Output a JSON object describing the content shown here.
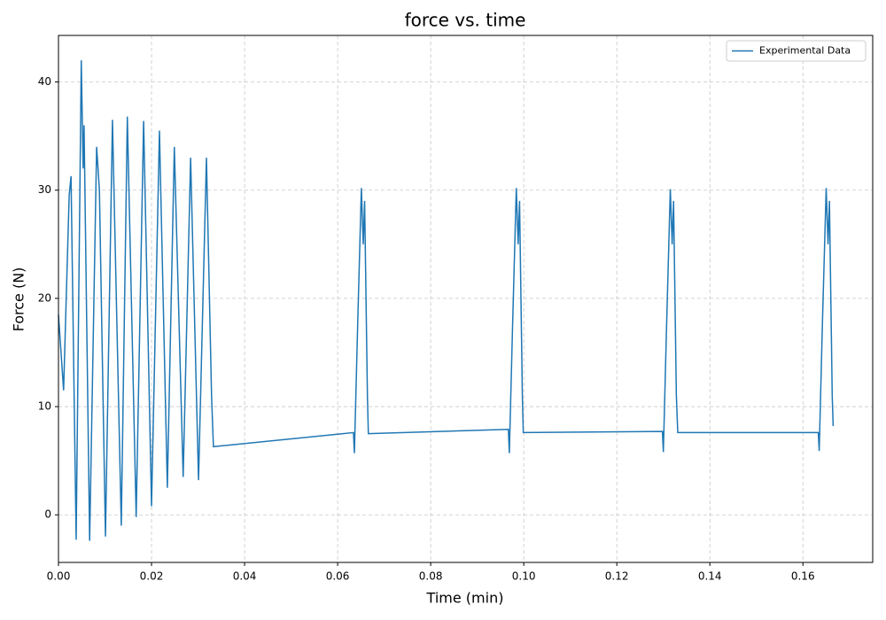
{
  "chart_data": {
    "type": "line",
    "title": "force vs. time",
    "xlabel": "Time (min)",
    "ylabel": "Force (N)",
    "x": [
      0,
      0.0011,
      0.0023,
      0.0027,
      0.0038,
      0.0049,
      0.0053,
      0.0055,
      0.0067,
      0.0082,
      0.0088,
      0.0101,
      0.0116,
      0.0135,
      0.0148,
      0.0167,
      0.0183,
      0.02,
      0.0217,
      0.0234,
      0.0249,
      0.0268,
      0.0284,
      0.0301,
      0.0318,
      0.0329,
      0.0333,
      0.0634,
      0.0636,
      0.0643,
      0.0651,
      0.0655,
      0.0658,
      0.0664,
      0.0666,
      0.0967,
      0.0969,
      0.0976,
      0.0984,
      0.0988,
      0.0991,
      0.0997,
      0.0999,
      0.1298,
      0.13,
      0.1307,
      0.1315,
      0.1319,
      0.1322,
      0.1328,
      0.1331,
      0.1633,
      0.1635,
      0.1642,
      0.165,
      0.1654,
      0.1657,
      0.1663,
      0.1665
    ],
    "series": [
      {
        "name": "Experimental Data",
        "color": "#1f77b4",
        "values": [
          18.5,
          11.5,
          29.5,
          31.3,
          -2.3,
          42,
          32,
          36,
          -2.4,
          34,
          30,
          -2,
          36.5,
          -1,
          36.8,
          -0.2,
          36.4,
          0.8,
          35.5,
          2.5,
          34,
          3.5,
          33,
          3.2,
          33,
          11,
          6.3,
          7.6,
          5.7,
          17.5,
          30.2,
          25,
          29,
          11,
          7.5,
          7.9,
          5.7,
          17.5,
          30.2,
          25,
          29,
          11,
          7.6,
          7.7,
          5.8,
          17.5,
          30.1,
          25,
          29,
          11,
          7.6,
          7.6,
          5.9,
          17.8,
          30.2,
          25,
          29,
          11,
          8.2
        ]
      }
    ],
    "xlim": [
      0,
      0.175
    ],
    "ylim": [
      -4.4,
      44.3
    ],
    "xticks": [
      {
        "value": 0,
        "label": "0.00"
      },
      {
        "value": 0.02,
        "label": "0.02"
      },
      {
        "value": 0.04,
        "label": "0.04"
      },
      {
        "value": 0.06,
        "label": "0.06"
      },
      {
        "value": 0.08,
        "label": "0.08"
      },
      {
        "value": 0.1,
        "label": "0.10"
      },
      {
        "value": 0.12,
        "label": "0.12"
      },
      {
        "value": 0.14,
        "label": "0.14"
      },
      {
        "value": 0.16,
        "label": "0.16"
      }
    ],
    "yticks": [
      0,
      10,
      20,
      30,
      40
    ],
    "grid": true,
    "legend": "upper right"
  }
}
